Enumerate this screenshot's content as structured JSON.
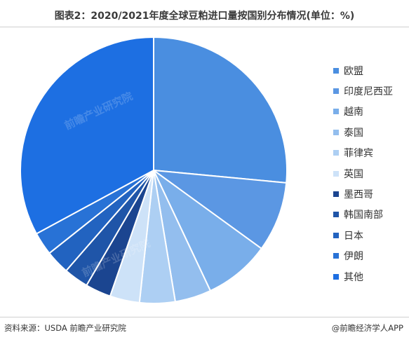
{
  "title": "图表2：2020/2021年度全球豆粕进口量按国别分布情况(单位：%)",
  "source": "资料来源：USDA 前瞻产业研究院",
  "credit": "@前瞻经济学人APP",
  "watermark": "前瞻产业研究院",
  "chart_data": {
    "type": "pie",
    "title": "图表2：2020/2021年度全球豆粕进口量按国别分布情况(单位：%)",
    "unit": "%",
    "legend_position": "right",
    "start_angle_deg": 0,
    "direction": "clockwise",
    "slices": [
      {
        "label": "欧盟",
        "value": 26.5,
        "color": "#4a8ee0"
      },
      {
        "label": "印度尼西亚",
        "value": 8.5,
        "color": "#5b97e3"
      },
      {
        "label": "越南",
        "value": 8.0,
        "color": "#79aeea"
      },
      {
        "label": "泰国",
        "value": 4.4,
        "color": "#93beee"
      },
      {
        "label": "菲律宾",
        "value": 4.3,
        "color": "#adcff3"
      },
      {
        "label": "英国",
        "value": 3.6,
        "color": "#cde2f8"
      },
      {
        "label": "墨西哥",
        "value": 3.1,
        "color": "#1b4590"
      },
      {
        "label": "韩国南部",
        "value": 3.0,
        "color": "#1f55a8"
      },
      {
        "label": "日本",
        "value": 2.9,
        "color": "#2263c0"
      },
      {
        "label": "伊朗",
        "value": 2.8,
        "color": "#2872d6"
      },
      {
        "label": "其他",
        "value": 32.9,
        "color": "#1d6fe2"
      }
    ]
  }
}
